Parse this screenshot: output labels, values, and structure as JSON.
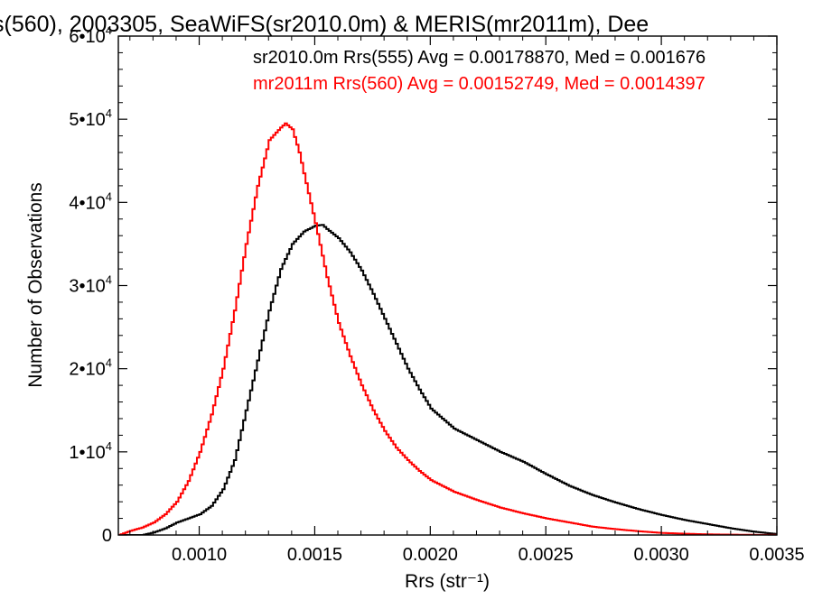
{
  "chart_data": {
    "type": "line",
    "title": "s(560), 2003305, SeaWiFS(sr2010.0m) & MERIS(mr2011m), Dee",
    "xlabel": "Rrs (str⁻¹)",
    "ylabel": "Number of Observations",
    "xlim": [
      0.00065,
      0.0035
    ],
    "ylim": [
      0,
      60000
    ],
    "xticks": [
      0.001,
      0.0015,
      0.002,
      0.0025,
      0.003,
      0.0035
    ],
    "xtick_labels": [
      "0.0010",
      "0.0015",
      "0.0020",
      "0.0025",
      "0.0030",
      "0.0035"
    ],
    "yticks": [
      0,
      10000,
      20000,
      30000,
      40000,
      50000,
      60000
    ],
    "ytick_labels": [
      {
        "mantissa": "0",
        "exp": ""
      },
      {
        "mantissa": "1•10",
        "exp": "4"
      },
      {
        "mantissa": "2•10",
        "exp": "4"
      },
      {
        "mantissa": "3•10",
        "exp": "4"
      },
      {
        "mantissa": "4•10",
        "exp": "4"
      },
      {
        "mantissa": "5•10",
        "exp": "4"
      },
      {
        "mantissa": "6•10",
        "exp": "4"
      }
    ],
    "grid": false,
    "step": true,
    "annotations": [
      {
        "text": "sr2010.0m Rrs(555) Avg = 0.00178870, Med = 0.001676",
        "color": "#000000"
      },
      {
        "text": "mr2011m Rrs(560) Avg = 0.00152749, Med = 0.0014397",
        "color": "#ff0000"
      }
    ],
    "series": [
      {
        "color": "#000000",
        "x": [
          0.00065,
          0.00075,
          0.0008,
          0.00085,
          0.0009,
          0.00095,
          0.001,
          0.00105,
          0.0011,
          0.00115,
          0.0012,
          0.00125,
          0.0013,
          0.00135,
          0.0014,
          0.00145,
          0.0015,
          0.00153,
          0.00155,
          0.0016,
          0.00165,
          0.0017,
          0.00175,
          0.0018,
          0.00185,
          0.0019,
          0.00195,
          0.002,
          0.0021,
          0.0022,
          0.0023,
          0.0024,
          0.0025,
          0.0026,
          0.0027,
          0.0028,
          0.0029,
          0.003,
          0.0031,
          0.0032,
          0.0033,
          0.0034,
          0.0035
        ],
        "y": [
          0,
          0,
          300,
          800,
          1500,
          2000,
          2500,
          3500,
          5500,
          9000,
          15000,
          21000,
          27000,
          32000,
          35000,
          36500,
          37200,
          37300,
          36800,
          35700,
          34000,
          31800,
          29000,
          26000,
          23000,
          20000,
          17500,
          15200,
          12800,
          11400,
          10000,
          8800,
          7300,
          5900,
          4800,
          3900,
          3100,
          2400,
          1800,
          1300,
          800,
          400,
          100
        ]
      },
      {
        "color": "#ff0000",
        "x": [
          0.00065,
          0.0007,
          0.00075,
          0.0008,
          0.00085,
          0.0009,
          0.00095,
          0.001,
          0.00105,
          0.0011,
          0.00115,
          0.0012,
          0.00125,
          0.0013,
          0.00135,
          0.00137,
          0.0014,
          0.00143,
          0.00145,
          0.0015,
          0.00155,
          0.0016,
          0.00165,
          0.0017,
          0.00175,
          0.0018,
          0.00185,
          0.0019,
          0.00195,
          0.002,
          0.0021,
          0.0022,
          0.0023,
          0.0024,
          0.0025,
          0.0026,
          0.0027,
          0.0028,
          0.0029,
          0.003,
          0.0031,
          0.0032,
          0.0033,
          0.0034,
          0.0035
        ],
        "y": [
          0,
          500,
          900,
          1500,
          2500,
          4000,
          6500,
          10000,
          14500,
          20000,
          27000,
          35000,
          42000,
          47500,
          49000,
          49500,
          48800,
          46000,
          43500,
          37500,
          31000,
          25500,
          21500,
          18000,
          15000,
          12500,
          10500,
          9000,
          7700,
          6600,
          5200,
          4200,
          3300,
          2600,
          2000,
          1500,
          1000,
          700,
          450,
          250,
          150,
          80,
          40,
          20,
          10
        ]
      }
    ]
  }
}
